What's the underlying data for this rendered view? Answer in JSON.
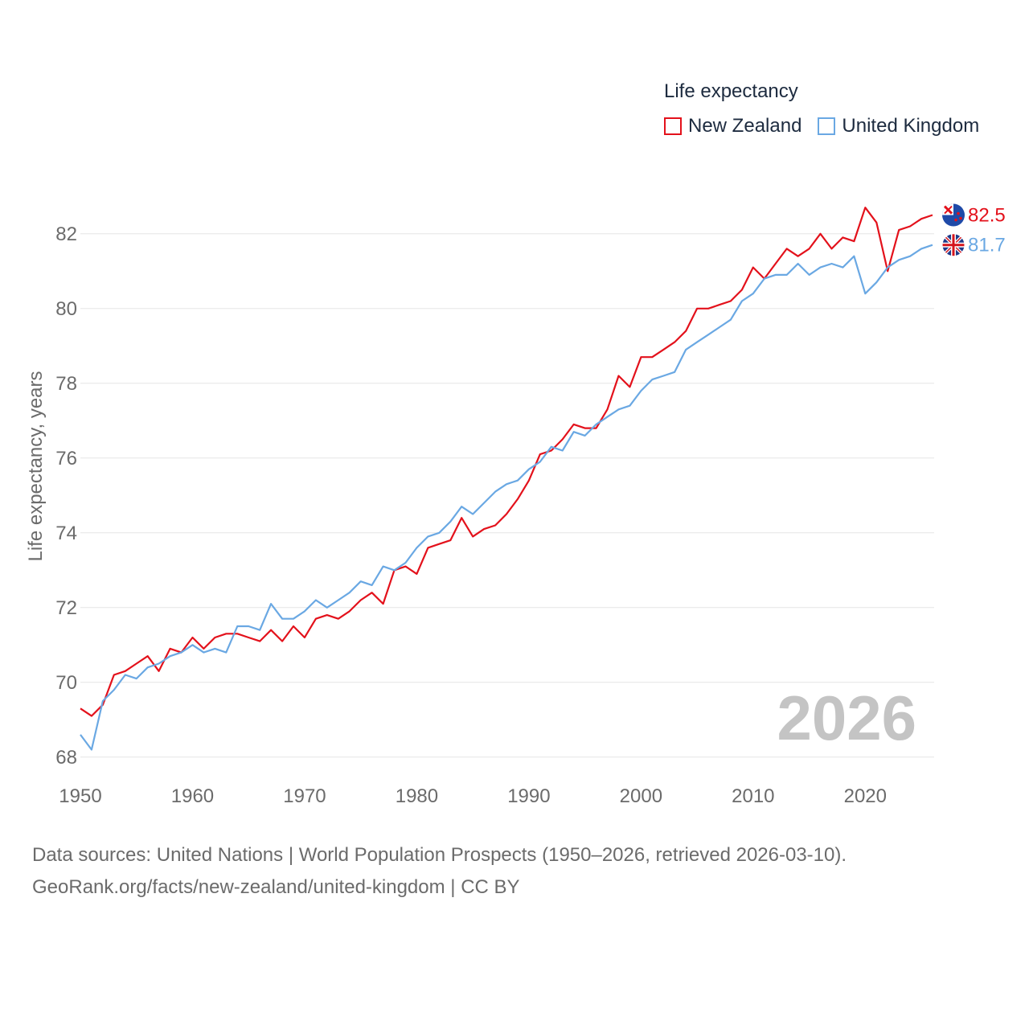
{
  "legend": {
    "title": "Life expectancy",
    "items": [
      {
        "name": "New Zealand",
        "color": "#e3111b"
      },
      {
        "name": "United Kingdom",
        "color": "#6aa8e3"
      }
    ]
  },
  "footer": {
    "line1": "Data sources: United Nations | World Population Prospects (1950–2026, retrieved 2026-03-10).",
    "line2": "GeoRank.org/facts/new-zealand/united-kingdom | CC BY"
  },
  "chart_data": {
    "type": "line",
    "title": "Life expectancy",
    "xlabel": "",
    "ylabel": "Life expectancy, years",
    "xlim": [
      1950,
      2026
    ],
    "ylim": [
      67.5,
      83.2
    ],
    "x_ticks": [
      1950,
      1960,
      1970,
      1980,
      1990,
      2000,
      2010,
      2020
    ],
    "y_ticks": [
      68,
      70,
      72,
      74,
      76,
      78,
      80,
      82
    ],
    "grid": true,
    "year_label": "2026",
    "end_labels": [
      "82.5",
      "81.7"
    ],
    "x_start": 1950,
    "series": [
      {
        "name": "New Zealand",
        "color": "#e3111b",
        "values": [
          69.3,
          69.1,
          69.4,
          70.2,
          70.3,
          70.5,
          70.7,
          70.3,
          70.9,
          70.8,
          71.2,
          70.9,
          71.2,
          71.3,
          71.3,
          71.2,
          71.1,
          71.4,
          71.1,
          71.5,
          71.2,
          71.7,
          71.8,
          71.7,
          71.9,
          72.2,
          72.4,
          72.1,
          73.0,
          73.1,
          72.9,
          73.6,
          73.7,
          73.8,
          74.4,
          73.9,
          74.1,
          74.2,
          74.5,
          74.9,
          75.4,
          76.1,
          76.2,
          76.5,
          76.9,
          76.8,
          76.8,
          77.3,
          78.2,
          77.9,
          78.7,
          78.7,
          78.9,
          79.1,
          79.4,
          80.0,
          80.0,
          80.1,
          80.2,
          80.5,
          81.1,
          80.8,
          81.2,
          81.6,
          81.4,
          81.6,
          82.0,
          81.6,
          81.9,
          81.8,
          82.7,
          82.3,
          81.0,
          82.1,
          82.2,
          82.4,
          82.5
        ]
      },
      {
        "name": "United Kingdom",
        "color": "#6aa8e3",
        "values": [
          68.6,
          68.2,
          69.5,
          69.8,
          70.2,
          70.1,
          70.4,
          70.5,
          70.7,
          70.8,
          71.0,
          70.8,
          70.9,
          70.8,
          71.5,
          71.5,
          71.4,
          72.1,
          71.7,
          71.7,
          71.9,
          72.2,
          72.0,
          72.2,
          72.4,
          72.7,
          72.6,
          73.1,
          73.0,
          73.2,
          73.6,
          73.9,
          74.0,
          74.3,
          74.7,
          74.5,
          74.8,
          75.1,
          75.3,
          75.4,
          75.7,
          75.9,
          76.3,
          76.2,
          76.7,
          76.6,
          76.9,
          77.1,
          77.3,
          77.4,
          77.8,
          78.1,
          78.2,
          78.3,
          78.9,
          79.1,
          79.3,
          79.5,
          79.7,
          80.2,
          80.4,
          80.8,
          80.9,
          80.9,
          81.2,
          80.9,
          81.1,
          81.2,
          81.1,
          81.4,
          80.4,
          80.7,
          81.1,
          81.3,
          81.4,
          81.6,
          81.7
        ]
      }
    ]
  }
}
